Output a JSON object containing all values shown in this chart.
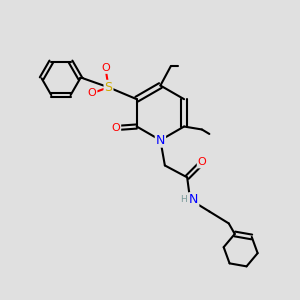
{
  "bg_color": "#e0e0e0",
  "bond_color": "#000000",
  "atom_colors": {
    "N": "#0000ff",
    "O": "#ff0000",
    "S": "#ccaa00",
    "H": "#7a9a9a",
    "C": "#000000"
  },
  "bond_width": 1.5,
  "font_size_atom": 8.5
}
